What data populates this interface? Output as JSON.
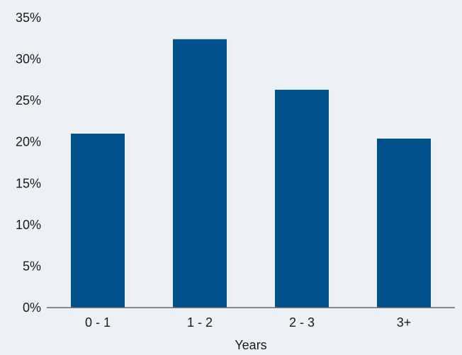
{
  "chart_data": {
    "type": "bar",
    "title": "",
    "xlabel": "Years",
    "ylabel": "",
    "categories": [
      "0 - 1",
      "1 - 2",
      "2 - 3",
      "3+"
    ],
    "values": [
      21.0,
      32.4,
      26.3,
      20.4
    ],
    "ylim": [
      0,
      35
    ],
    "y_ticks": [
      0,
      5,
      10,
      15,
      20,
      25,
      30,
      35
    ],
    "y_tick_labels": [
      "0%",
      "5%",
      "10%",
      "15%",
      "20%",
      "25%",
      "30%",
      "35%"
    ],
    "grid": false,
    "legend": "none",
    "colors": {
      "bar": "#00508a",
      "axis": "#666666",
      "background": "#edf0f5"
    }
  }
}
